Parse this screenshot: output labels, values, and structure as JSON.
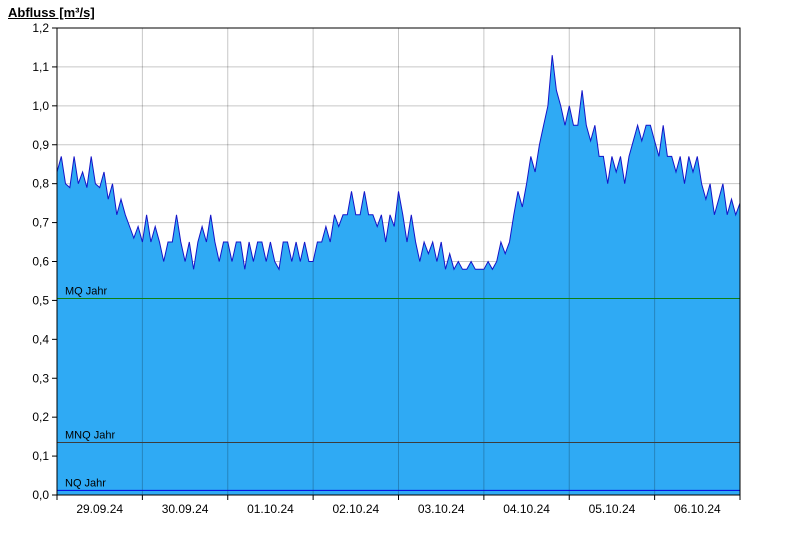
{
  "title": "Abfluss [m³/s]",
  "chart_data": {
    "type": "area",
    "title": "Abfluss [m³/s]",
    "ylabel": "Abfluss [m³/s]",
    "xlabel": "",
    "ylim": [
      0,
      1.2
    ],
    "grid": "horizontal",
    "legend": "none",
    "y_ticks": {
      "values": [
        0.0,
        0.1,
        0.2,
        0.3,
        0.4,
        0.5,
        0.6,
        0.7,
        0.8,
        0.9,
        1.0,
        1.1,
        1.2
      ],
      "labels": [
        "0,0",
        "0,1",
        "0,2",
        "0,3",
        "0,4",
        "0,5",
        "0,6",
        "0,7",
        "0,8",
        "0,9",
        "1,0",
        "1,1",
        "1,2"
      ]
    },
    "x_categories": [
      "29.09.24",
      "30.09.24",
      "01.10.24",
      "02.10.24",
      "03.10.24",
      "04.10.24",
      "05.10.24",
      "06.10.24"
    ],
    "x_range_days": [
      0,
      8
    ],
    "series": [
      {
        "name": "Abfluss",
        "unit": "m³/s",
        "sample_interval_days": 0.05,
        "values": [
          0.83,
          0.87,
          0.8,
          0.79,
          0.87,
          0.8,
          0.83,
          0.79,
          0.87,
          0.8,
          0.79,
          0.83,
          0.76,
          0.8,
          0.72,
          0.76,
          0.72,
          0.69,
          0.66,
          0.69,
          0.65,
          0.72,
          0.65,
          0.69,
          0.65,
          0.6,
          0.65,
          0.65,
          0.72,
          0.65,
          0.6,
          0.65,
          0.58,
          0.65,
          0.69,
          0.65,
          0.72,
          0.65,
          0.6,
          0.65,
          0.65,
          0.6,
          0.65,
          0.65,
          0.58,
          0.65,
          0.6,
          0.65,
          0.65,
          0.6,
          0.65,
          0.6,
          0.58,
          0.65,
          0.65,
          0.6,
          0.65,
          0.6,
          0.65,
          0.6,
          0.6,
          0.65,
          0.65,
          0.69,
          0.65,
          0.72,
          0.69,
          0.72,
          0.72,
          0.78,
          0.72,
          0.72,
          0.78,
          0.72,
          0.72,
          0.69,
          0.72,
          0.65,
          0.72,
          0.69,
          0.78,
          0.72,
          0.65,
          0.72,
          0.65,
          0.6,
          0.65,
          0.62,
          0.65,
          0.6,
          0.65,
          0.58,
          0.62,
          0.58,
          0.6,
          0.58,
          0.58,
          0.6,
          0.58,
          0.58,
          0.58,
          0.6,
          0.58,
          0.6,
          0.65,
          0.62,
          0.65,
          0.72,
          0.78,
          0.74,
          0.8,
          0.87,
          0.83,
          0.9,
          0.95,
          1.0,
          1.13,
          1.04,
          1.0,
          0.95,
          1.0,
          0.95,
          0.95,
          1.04,
          0.95,
          0.91,
          0.95,
          0.87,
          0.87,
          0.8,
          0.87,
          0.83,
          0.87,
          0.8,
          0.87,
          0.91,
          0.95,
          0.91,
          0.95,
          0.95,
          0.91,
          0.87,
          0.95,
          0.87,
          0.87,
          0.83,
          0.87,
          0.8,
          0.87,
          0.83,
          0.87,
          0.8,
          0.76,
          0.8,
          0.72,
          0.76,
          0.8,
          0.72,
          0.76,
          0.72,
          0.75
        ]
      }
    ],
    "reference_lines": [
      {
        "label": "MQ Jahr",
        "value": 0.505,
        "color": "#0e7f12"
      },
      {
        "label": "MNQ Jahr",
        "value": 0.135,
        "color": "#3c3c3c"
      },
      {
        "label": "NQ Jahr",
        "value": 0.012,
        "color": "#0000e0"
      }
    ],
    "colors": {
      "fill": "#2faaf4",
      "line": "#1414c8",
      "grid": "#c8c8c8",
      "day_grid": "#000000",
      "axis": "#000000",
      "background": "#ffffff"
    }
  }
}
